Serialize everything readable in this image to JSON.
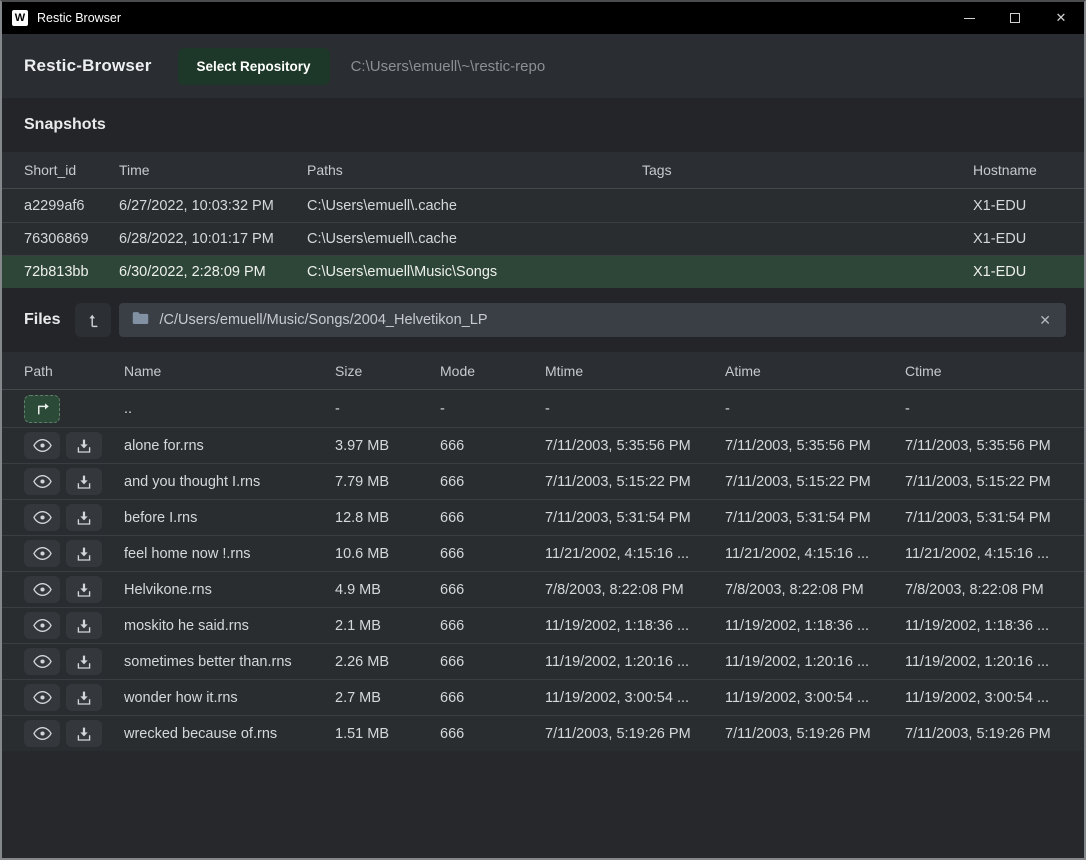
{
  "window": {
    "title_bar": {
      "icon_letter": "W",
      "title": "Restic Browser",
      "controls": {
        "minimize": "–",
        "maximize": "□",
        "close": "✕"
      }
    }
  },
  "header": {
    "app_title": "Restic-Browser",
    "select_repo_label": "Select Repository",
    "repo_path": "C:\\Users\\emuell\\~\\restic-repo"
  },
  "snapshots": {
    "title": "Snapshots",
    "columns": [
      "Short_id",
      "Time",
      "Paths",
      "Tags",
      "Hostname"
    ],
    "rows": [
      {
        "short_id": "a2299af6",
        "time": "6/27/2022, 10:03:32 PM",
        "paths": "C:\\Users\\emuell\\.cache",
        "tags": "",
        "hostname": "X1-EDU",
        "selected": false
      },
      {
        "short_id": "76306869",
        "time": "6/28/2022, 10:01:17 PM",
        "paths": "C:\\Users\\emuell\\.cache",
        "tags": "",
        "hostname": "X1-EDU",
        "selected": false
      },
      {
        "short_id": "72b813bb",
        "time": "6/30/2022, 2:28:09 PM",
        "paths": "C:\\Users\\emuell\\Music\\Songs",
        "tags": "",
        "hostname": "X1-EDU",
        "selected": true
      }
    ]
  },
  "files": {
    "title": "Files",
    "path": "/C/Users/emuell/Music/Songs/2004_Helvetikon_LP",
    "clear_label": "✕",
    "columns": [
      "Path",
      "Name",
      "Size",
      "Mode",
      "Mtime",
      "Atime",
      "Ctime"
    ],
    "parent_row": {
      "name": "..",
      "size": "-",
      "mode": "-",
      "mtime": "-",
      "atime": "-",
      "ctime": "-"
    },
    "rows": [
      {
        "name": "alone for.rns",
        "size": "3.97 MB",
        "mode": "666",
        "mtime": "7/11/2003, 5:35:56 PM",
        "atime": "7/11/2003, 5:35:56 PM",
        "ctime": "7/11/2003, 5:35:56 PM"
      },
      {
        "name": "and you thought I.rns",
        "size": "7.79 MB",
        "mode": "666",
        "mtime": "7/11/2003, 5:15:22 PM",
        "atime": "7/11/2003, 5:15:22 PM",
        "ctime": "7/11/2003, 5:15:22 PM"
      },
      {
        "name": "before I.rns",
        "size": "12.8 MB",
        "mode": "666",
        "mtime": "7/11/2003, 5:31:54 PM",
        "atime": "7/11/2003, 5:31:54 PM",
        "ctime": "7/11/2003, 5:31:54 PM"
      },
      {
        "name": "feel home now !.rns",
        "size": "10.6 MB",
        "mode": "666",
        "mtime": "11/21/2002, 4:15:16 ...",
        "atime": "11/21/2002, 4:15:16 ...",
        "ctime": "11/21/2002, 4:15:16 ..."
      },
      {
        "name": "Helvikone.rns",
        "size": "4.9 MB",
        "mode": "666",
        "mtime": "7/8/2003, 8:22:08 PM",
        "atime": "7/8/2003, 8:22:08 PM",
        "ctime": "7/8/2003, 8:22:08 PM"
      },
      {
        "name": "moskito he said.rns",
        "size": "2.1 MB",
        "mode": "666",
        "mtime": "11/19/2002, 1:18:36 ...",
        "atime": "11/19/2002, 1:18:36 ...",
        "ctime": "11/19/2002, 1:18:36 ..."
      },
      {
        "name": "sometimes better than.rns",
        "size": "2.26 MB",
        "mode": "666",
        "mtime": "11/19/2002, 1:20:16 ...",
        "atime": "11/19/2002, 1:20:16 ...",
        "ctime": "11/19/2002, 1:20:16 ..."
      },
      {
        "name": "wonder how it.rns",
        "size": "2.7 MB",
        "mode": "666",
        "mtime": "11/19/2002, 3:00:54 ...",
        "atime": "11/19/2002, 3:00:54 ...",
        "ctime": "11/19/2002, 3:00:54 ..."
      },
      {
        "name": "wrecked because of.rns",
        "size": "1.51 MB",
        "mode": "666",
        "mtime": "7/11/2003, 5:19:26 PM",
        "atime": "7/11/2003, 5:19:26 PM",
        "ctime": "7/11/2003, 5:19:26 PM"
      }
    ]
  },
  "colors": {
    "accent_green_button": "#1d3829",
    "selected_row_green": "#2e4638",
    "titlebar": "#000000",
    "window_background": "#232528",
    "table_row": "#2a2d30",
    "table_header": "#2b2e32",
    "muted_text": "#8b9095"
  }
}
